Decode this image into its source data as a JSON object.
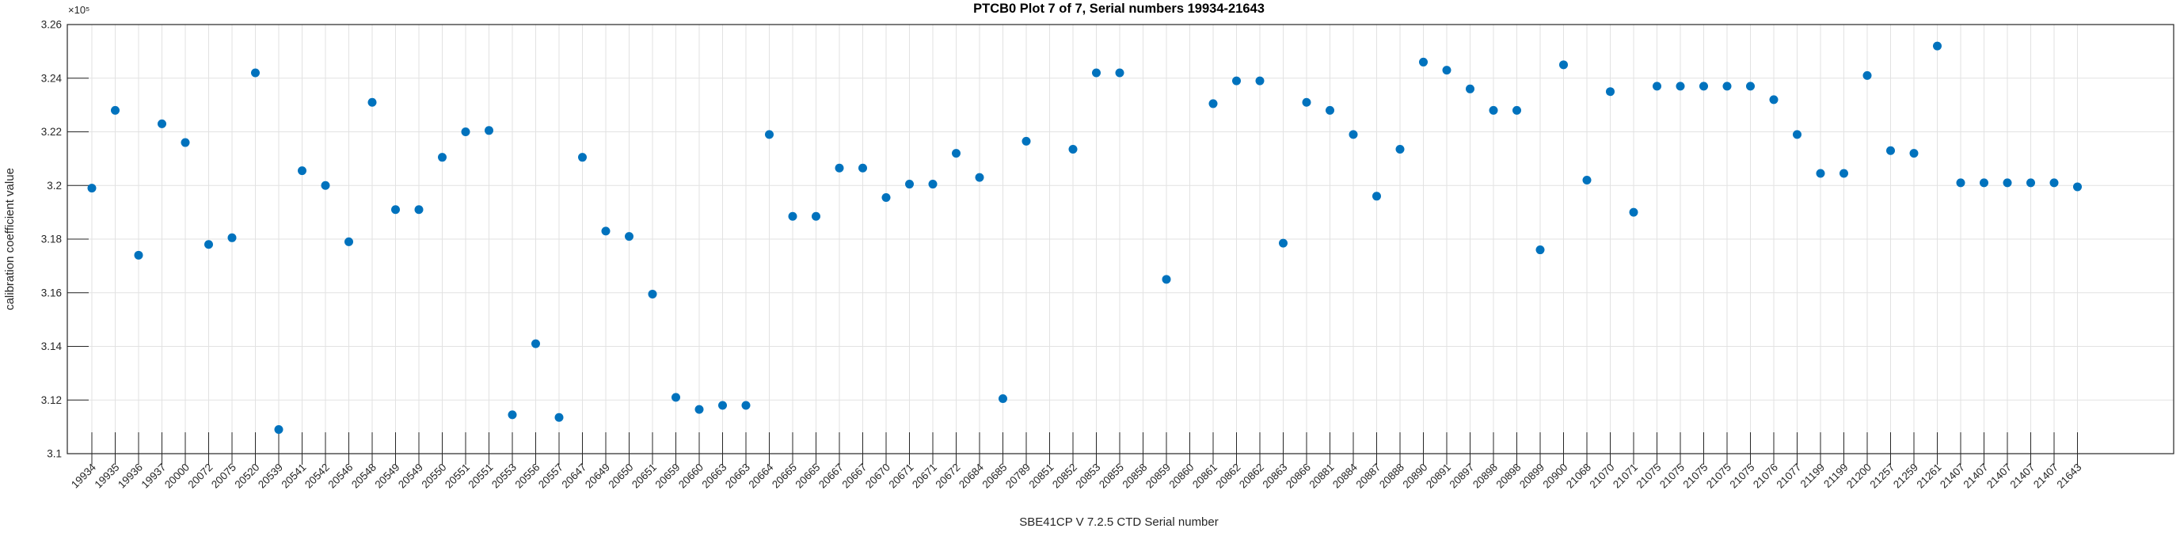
{
  "chart_data": {
    "type": "scatter",
    "title": "PTCB0 Plot 7 of 7, Serial numbers 19934-21643",
    "xlabel": "SBE41CP V 7.2.5 CTD Serial number",
    "ylabel": "calibration coefficient value",
    "legend": null,
    "grid": true,
    "marker_color": "#0072BD",
    "axis_color": "#262626",
    "grid_color": "#e2e2e2",
    "y_axis": {
      "min": 310000,
      "max": 326000,
      "exponent_label": "×10⁵",
      "ticks": [
        {
          "value": 310000,
          "label": "3.1"
        },
        {
          "value": 312000,
          "label": "3.12"
        },
        {
          "value": 314000,
          "label": "3.14"
        },
        {
          "value": 316000,
          "label": "3.16"
        },
        {
          "value": 318000,
          "label": "3.18"
        },
        {
          "value": 320000,
          "label": "3.2"
        },
        {
          "value": 322000,
          "label": "3.22"
        },
        {
          "value": 324000,
          "label": "3.24"
        },
        {
          "value": 326000,
          "label": "3.26"
        }
      ]
    },
    "categories": [
      "19934",
      "19935",
      "19936",
      "19937",
      "20000",
      "20072",
      "20075",
      "20520",
      "20539",
      "20541",
      "20542",
      "20546",
      "20548",
      "20549",
      "20549",
      "20550",
      "20551",
      "20551",
      "20553",
      "20556",
      "20557",
      "20647",
      "20649",
      "20650",
      "20651",
      "20659",
      "20660",
      "20663",
      "20663",
      "20664",
      "20665",
      "20665",
      "20667",
      "20667",
      "20670",
      "20671",
      "20671",
      "20672",
      "20684",
      "20685",
      "20789",
      "20851",
      "20852",
      "20853",
      "20855",
      "20858",
      "20859",
      "20860",
      "20861",
      "20862",
      "20862",
      "20863",
      "20866",
      "20881",
      "20884",
      "20887",
      "20888",
      "20890",
      "20891",
      "20897",
      "20898",
      "20898",
      "20899",
      "20900",
      "21068",
      "21070",
      "21071",
      "21075",
      "21075",
      "21075",
      "21075",
      "21075",
      "21076",
      "21077",
      "21199",
      "21199",
      "21200",
      "21257",
      "21259",
      "21261",
      "21407",
      "21407",
      "21407",
      "21407",
      "21407",
      "21643"
    ],
    "values": [
      319900,
      322800,
      317400,
      322300,
      321600,
      317800,
      318050,
      324200,
      310900,
      320550,
      320000,
      317900,
      323100,
      319100,
      319100,
      321050,
      322000,
      322050,
      311450,
      314100,
      311350,
      321050,
      318300,
      318100,
      315950,
      312100,
      311650,
      311800,
      311800,
      321900,
      318850,
      318850,
      320650,
      320650,
      319550,
      320050,
      320050,
      321200,
      320300,
      312050,
      321650,
      null,
      321350,
      324200,
      324200,
      null,
      316500,
      null,
      323050,
      323900,
      323900,
      317850,
      323100,
      322800,
      321900,
      319600,
      321350,
      324600,
      324300,
      323600,
      322800,
      322800,
      317600,
      324500,
      320200,
      323500,
      319000,
      323700,
      323700,
      323700,
      323700,
      323700,
      323200,
      321900,
      320450,
      320450,
      324100,
      321300,
      321200,
      325200,
      320100,
      320100,
      320100,
      320100,
      320100,
      319950
    ]
  }
}
